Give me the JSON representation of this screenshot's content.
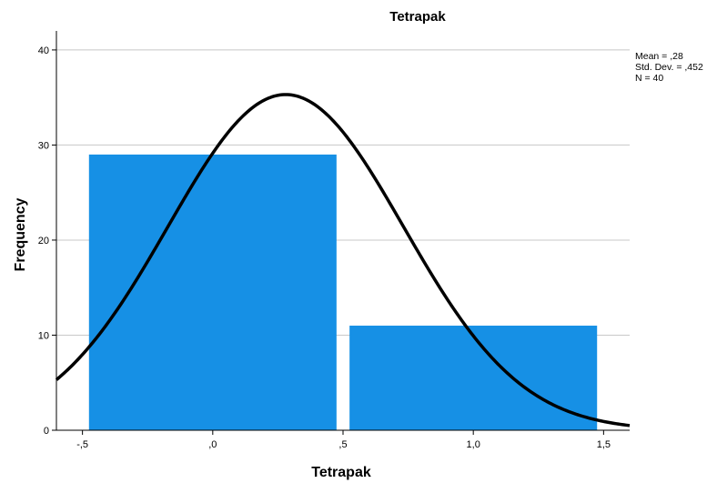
{
  "chart_data": {
    "type": "bar",
    "title": "Tetrapak",
    "xlabel": "Tetrapak",
    "ylabel": "Frequency",
    "bins": [
      {
        "start": -0.475,
        "end": 0.475,
        "value": 29
      },
      {
        "start": 0.525,
        "end": 1.475,
        "value": 11
      }
    ],
    "xlim": [
      -0.6,
      1.6
    ],
    "ylim": [
      0,
      42
    ],
    "x_ticks": [
      {
        "value": -0.5,
        "label": "-,5"
      },
      {
        "value": 0.0,
        "label": ",0"
      },
      {
        "value": 0.5,
        "label": ",5"
      },
      {
        "value": 1.0,
        "label": "1,0"
      },
      {
        "value": 1.5,
        "label": "1,5"
      }
    ],
    "y_ticks": [
      {
        "value": 0,
        "label": "0"
      },
      {
        "value": 10,
        "label": "10"
      },
      {
        "value": 20,
        "label": "20"
      },
      {
        "value": 30,
        "label": "30"
      },
      {
        "value": 40,
        "label": "40"
      }
    ],
    "normal_curve": {
      "mean": 0.28,
      "sd": 0.452,
      "n": 40,
      "bin_width": 1.0
    },
    "stats_lines": [
      "Mean = ,28",
      "Std. Dev. = ,452",
      "N = 40"
    ],
    "grid": true,
    "legend": "top-right",
    "colors": {
      "bar": "#1690e5",
      "curve": "#000000",
      "grid": "#c8c8c8",
      "axis": "#000000"
    }
  }
}
